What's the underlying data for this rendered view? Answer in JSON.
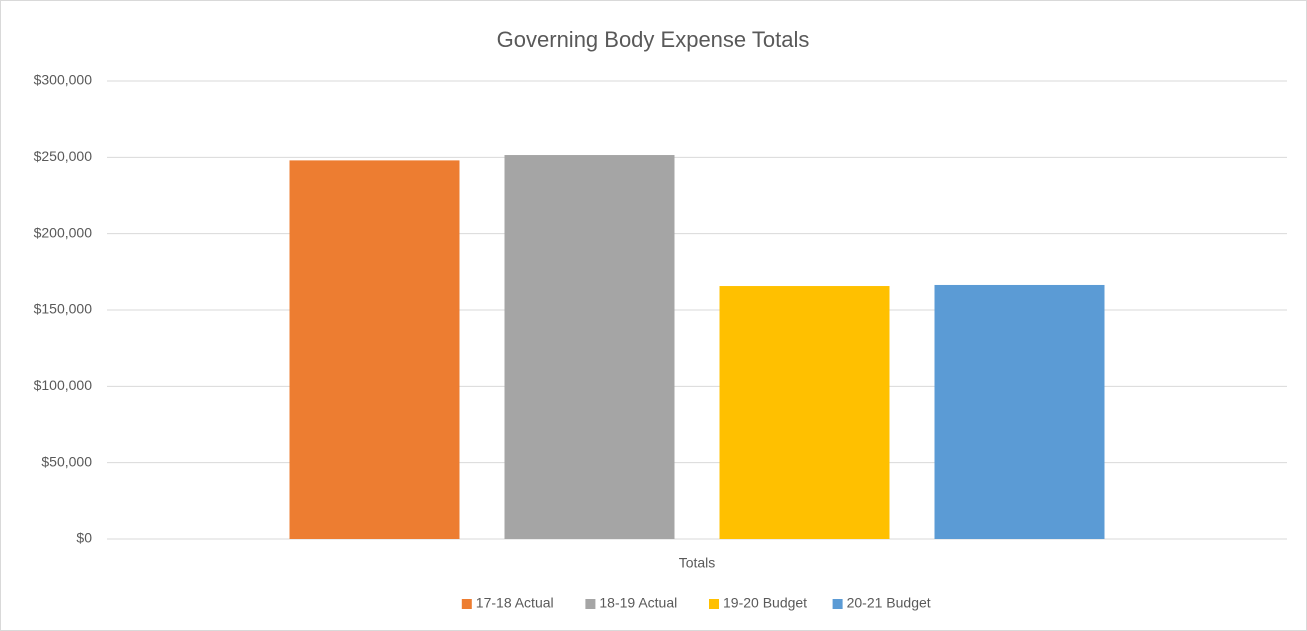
{
  "chart_data": {
    "type": "bar",
    "title": "Governing Body Expense Totals",
    "categories": [
      "Totals"
    ],
    "series": [
      {
        "name": "17-18 Actual",
        "color": "#ed7d31",
        "values": [
          248000
        ]
      },
      {
        "name": "18-19 Actual",
        "color": "#a5a5a5",
        "values": [
          251500
        ]
      },
      {
        "name": "19-20 Budget",
        "color": "#ffc000",
        "values": [
          165700
        ]
      },
      {
        "name": "20-21 Budget",
        "color": "#5b9bd5",
        "values": [
          166400
        ]
      }
    ],
    "ylim": [
      0,
      300000
    ],
    "yticks": [
      {
        "value": 0,
        "label": "$0"
      },
      {
        "value": 50000,
        "label": "$50,000"
      },
      {
        "value": 100000,
        "label": "$100,000"
      },
      {
        "value": 150000,
        "label": "$150,000"
      },
      {
        "value": 200000,
        "label": "$200,000"
      },
      {
        "value": 250000,
        "label": "$250,000"
      },
      {
        "value": 300000,
        "label": "$300,000"
      }
    ],
    "grid": true,
    "legend": "bottom"
  }
}
